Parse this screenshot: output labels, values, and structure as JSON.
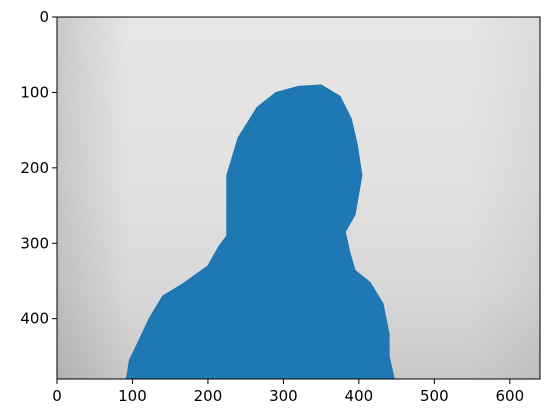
{
  "chart_data": {
    "type": "image",
    "title": "",
    "xlabel": "",
    "ylabel": "",
    "xlim": [
      0,
      640
    ],
    "ylim": [
      480,
      0
    ],
    "xticks": [
      0,
      100,
      200,
      300,
      400,
      500,
      600
    ],
    "yticks": [
      0,
      100,
      200,
      300,
      400
    ],
    "xtick_labels": [
      "0",
      "100",
      "200",
      "300",
      "400",
      "500",
      "600"
    ],
    "ytick_labels": [
      "0",
      "100",
      "200",
      "300",
      "400"
    ],
    "grid": false,
    "background": "grayscale photograph of a light wall behind a person",
    "overlay": {
      "kind": "segmentation mask",
      "color": "#1f77b4",
      "polygon": [
        [
          92,
          480
        ],
        [
          96,
          455
        ],
        [
          108,
          430
        ],
        [
          122,
          400
        ],
        [
          140,
          370
        ],
        [
          165,
          355
        ],
        [
          200,
          330
        ],
        [
          214,
          305
        ],
        [
          225,
          290
        ],
        [
          225,
          210
        ],
        [
          240,
          160
        ],
        [
          265,
          120
        ],
        [
          290,
          100
        ],
        [
          320,
          92
        ],
        [
          350,
          90
        ],
        [
          375,
          105
        ],
        [
          390,
          135
        ],
        [
          398,
          170
        ],
        [
          404,
          210
        ],
        [
          395,
          262
        ],
        [
          382,
          285
        ],
        [
          388,
          312
        ],
        [
          395,
          336
        ],
        [
          415,
          352
        ],
        [
          432,
          380
        ],
        [
          440,
          420
        ],
        [
          440,
          450
        ],
        [
          447,
          480
        ]
      ]
    },
    "colors": {
      "mask": "#1f77b4",
      "wall_light": "#e8e8e8",
      "wall_dark": "#b6b6b6",
      "axis": "#000000"
    }
  }
}
